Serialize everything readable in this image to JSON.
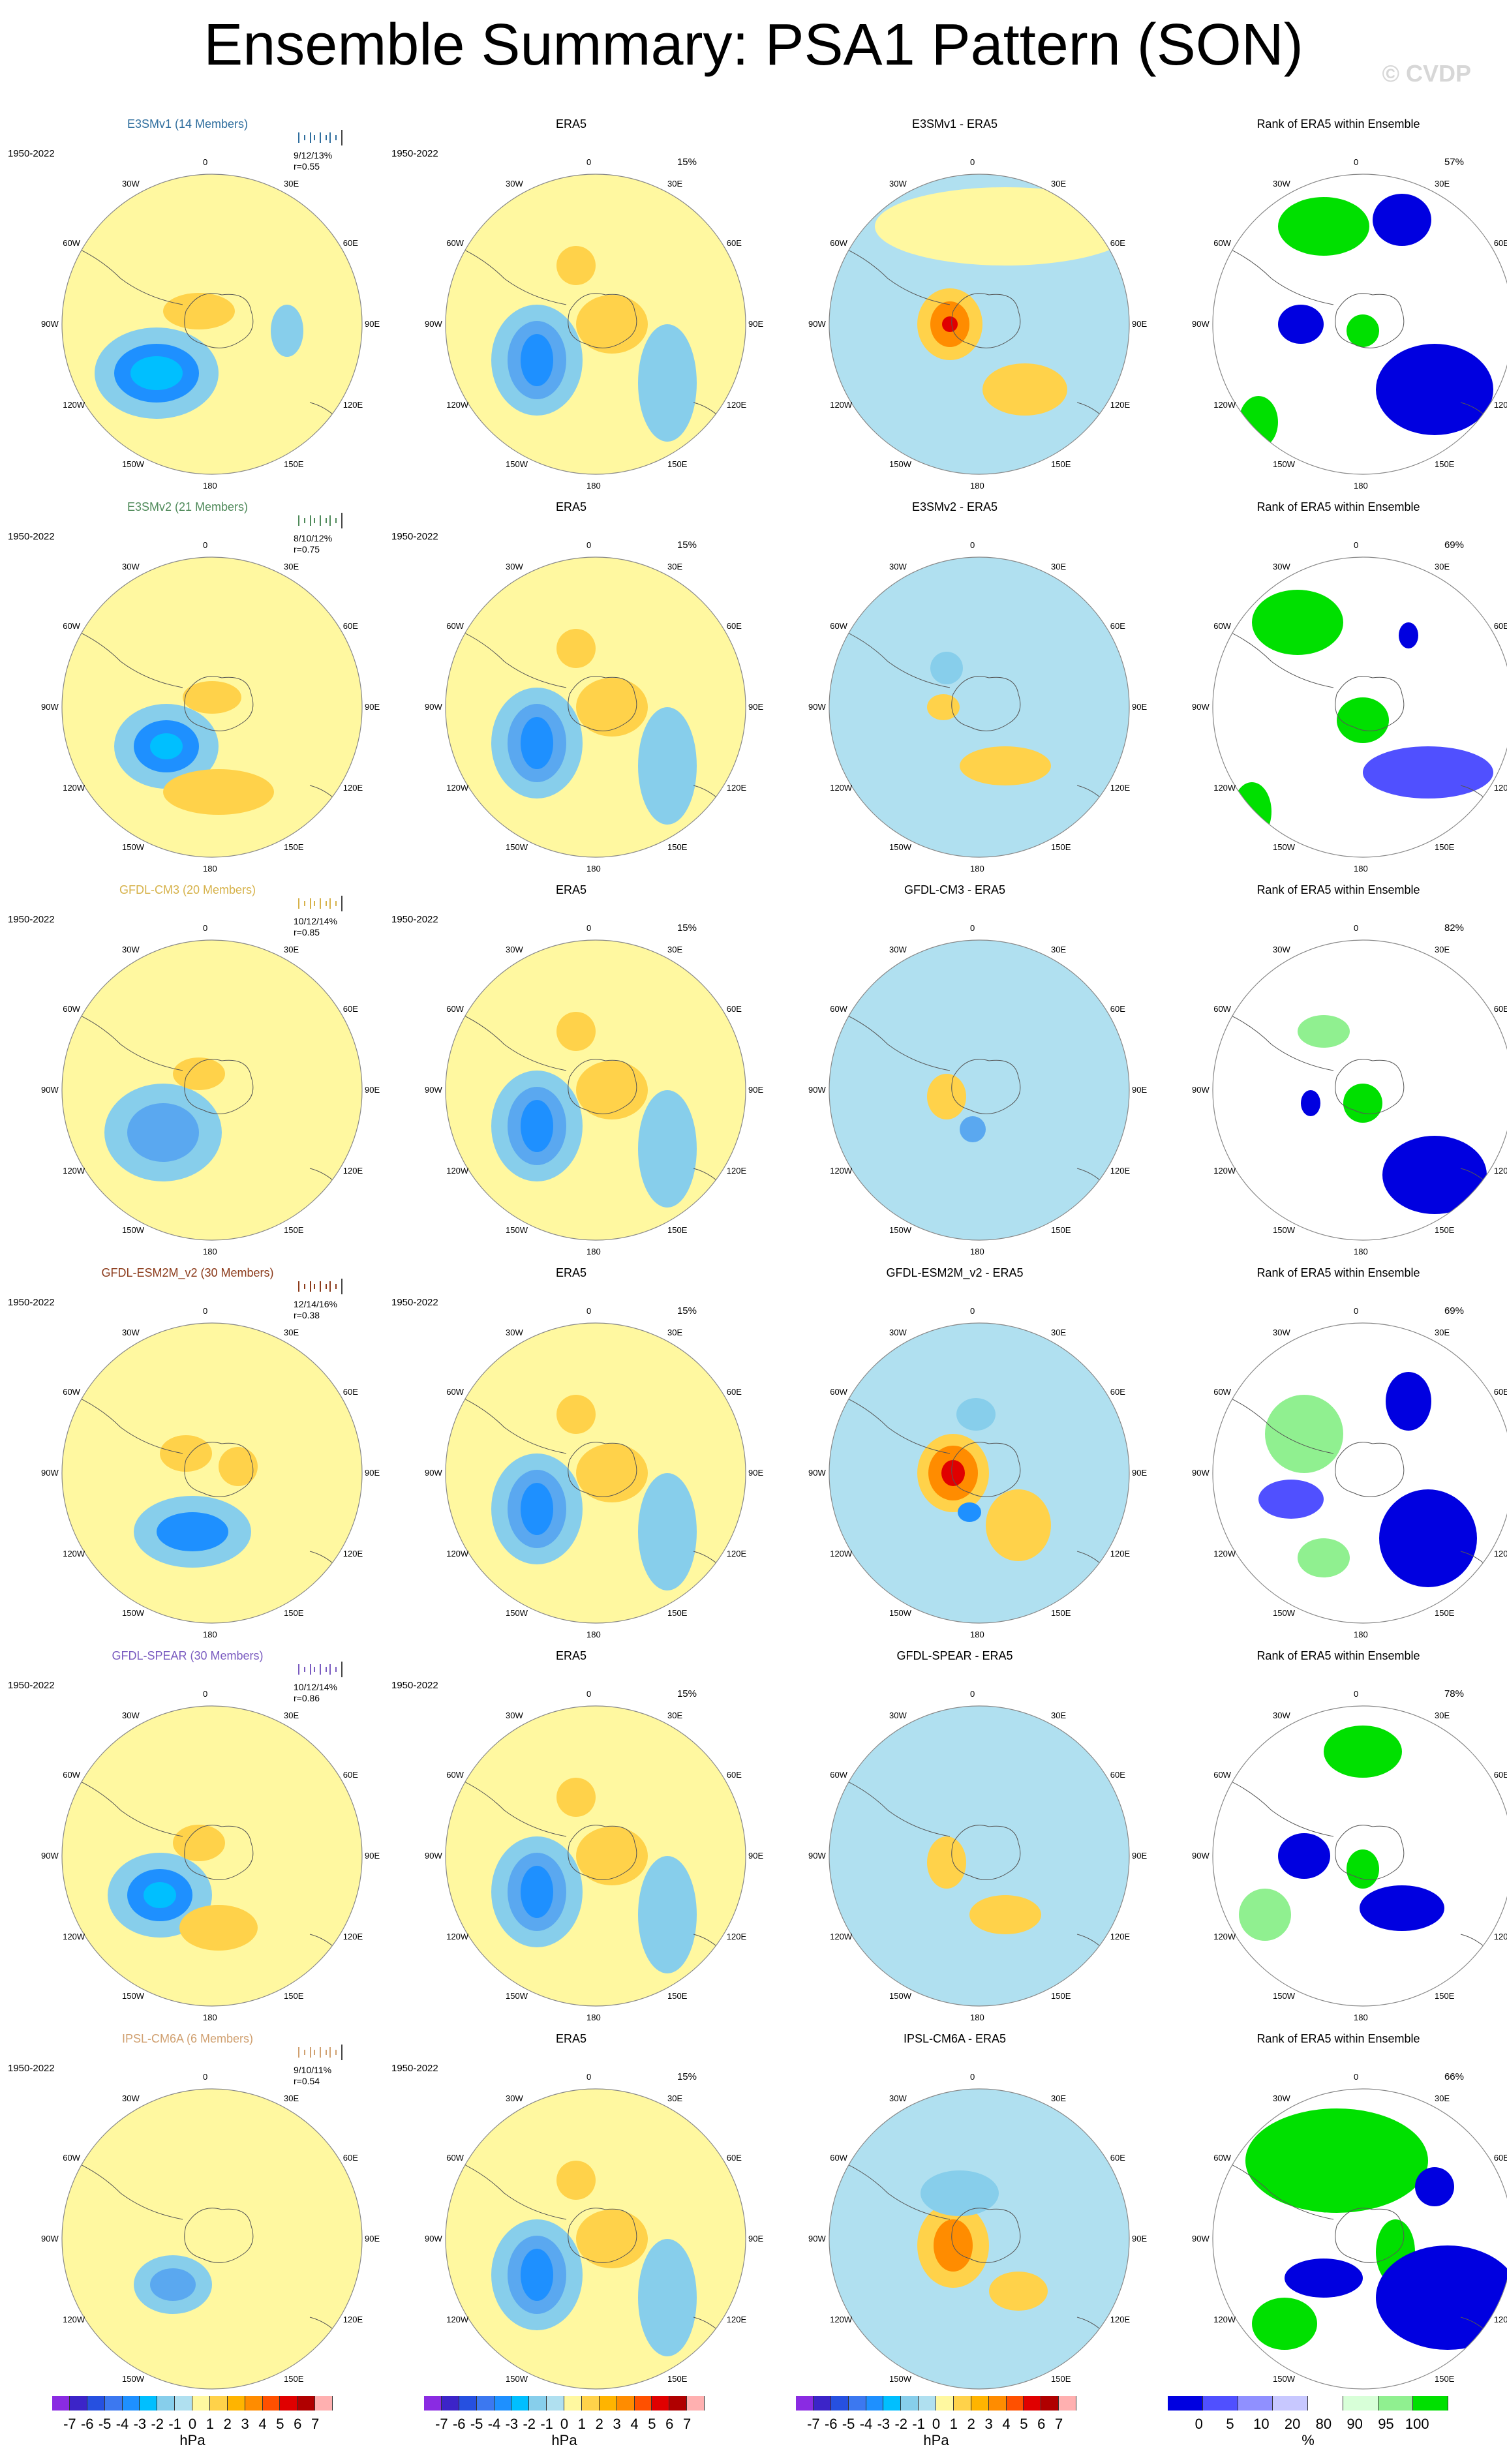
{
  "title": "Ensemble Summary: PSA1 Pattern (SON)",
  "credit": "© CVDP",
  "column_titles": [
    "ERA5",
    "Rank of ERA5 within Ensemble"
  ],
  "obs_period": "1950-2022",
  "obs_pct": "15%",
  "lon_labels": [
    "0",
    "30E",
    "60E",
    "90E",
    "120E",
    "150E",
    "180",
    "150W",
    "120W",
    "90W",
    "60W",
    "30W"
  ],
  "rows": [
    {
      "model": "E3SMv1 (14 Members)",
      "color": "#2f6e9e",
      "stats": "9/12/13%",
      "r": "r=0.55",
      "diff": "E3SMv1 - ERA5",
      "rank_pct": "57%"
    },
    {
      "model": "E3SMv2 (21 Members)",
      "color": "#4f8a5a",
      "stats": "8/10/12%",
      "r": "r=0.75",
      "diff": "E3SMv2 - ERA5",
      "rank_pct": "69%"
    },
    {
      "model": "GFDL-CM3 (20 Members)",
      "color": "#d6b24a",
      "stats": "10/12/14%",
      "r": "r=0.85",
      "diff": "GFDL-CM3 - ERA5",
      "rank_pct": "82%"
    },
    {
      "model": "GFDL-ESM2M_v2 (30 Members)",
      "color": "#8b3a1a",
      "stats": "12/14/16%",
      "r": "r=0.38",
      "diff": "GFDL-ESM2M_v2 - ERA5",
      "rank_pct": "69%"
    },
    {
      "model": "GFDL-SPEAR (30 Members)",
      "color": "#7a5bc0",
      "stats": "10/12/14%",
      "r": "r=0.86",
      "diff": "GFDL-SPEAR - ERA5",
      "rank_pct": "78%"
    },
    {
      "model": "IPSL-CM6A (6 Members)",
      "color": "#d0a070",
      "stats": "9/10/11%",
      "r": "r=0.54",
      "diff": "IPSL-CM6A - ERA5",
      "rank_pct": "66%"
    }
  ],
  "colorbar_hpa": {
    "labels": [
      "-7",
      "-6",
      "-5",
      "-4",
      "-3",
      "-2",
      "-1",
      "0",
      "1",
      "2",
      "3",
      "4",
      "5",
      "6",
      "7"
    ],
    "unit": "hPa",
    "colors": [
      "#8a2be2",
      "#3c24c8",
      "#2650e0",
      "#3c78f0",
      "#1e90ff",
      "#00bfff",
      "#87ceeb",
      "#b0e0f0",
      "#fff8a0",
      "#ffd24a",
      "#ffb400",
      "#ff8c00",
      "#ff5000",
      "#e00000",
      "#b00000",
      "#ffb0b0"
    ]
  },
  "colorbar_rank": {
    "labels": [
      "0",
      "5",
      "10",
      "20",
      "80",
      "90",
      "95",
      "100"
    ],
    "unit": "%",
    "colors": [
      "#0000e0",
      "#5050ff",
      "#9090ff",
      "#c8c8ff",
      "#ffffff",
      "#d8ffd8",
      "#90f090",
      "#00e000"
    ]
  },
  "chart_data": {
    "type": "heatmap",
    "title": "Ensemble Summary: PSA1 Pattern (SON)",
    "panels_per_row": [
      "model ensemble mean",
      "ERA5",
      "model - ERA5",
      "Rank of ERA5 within Ensemble"
    ],
    "models": [
      "E3SMv1",
      "E3SMv2",
      "GFDL-CM3",
      "GFDL-ESM2M_v2",
      "GFDL-SPEAR",
      "IPSL-CM6A"
    ],
    "members": [
      14,
      21,
      20,
      30,
      30,
      6
    ],
    "pct_variance_explained": [
      "9/12/13%",
      "8/10/12%",
      "10/12/14%",
      "12/14/16%",
      "10/12/14%",
      "9/10/11%"
    ],
    "pattern_correlation": [
      0.55,
      0.75,
      0.85,
      0.38,
      0.86,
      0.54
    ],
    "obs_pct_variance": 15,
    "rank_pct": [
      57,
      69,
      82,
      69,
      78,
      66
    ],
    "colorbar_range_hpa": [
      -7,
      7
    ],
    "colorbar_unit": "hPa"
  }
}
